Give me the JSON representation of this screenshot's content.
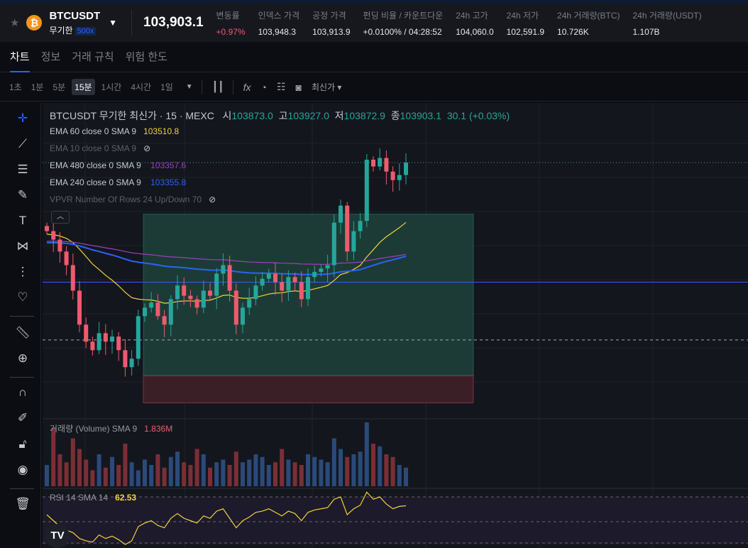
{
  "header": {
    "symbol": "BTCUSDT",
    "type": "무기한",
    "leverage": "500x",
    "last_price": "103,903.1",
    "stats": [
      {
        "label": "변동률",
        "value": "+0.97%",
        "color": "#f05a6e"
      },
      {
        "label": "인덱스 가격",
        "value": "103,948.3"
      },
      {
        "label": "공정 가격",
        "value": "103,913.9"
      },
      {
        "label": "펀딩 비율 / 카운트다운",
        "value": "+0.0100% / 04:28:52"
      },
      {
        "label": "24h 고가",
        "value": "104,060.0"
      },
      {
        "label": "24h 저가",
        "value": "102,591.9"
      },
      {
        "label": "24h 거래량(BTC)",
        "value": "10.726K"
      },
      {
        "label": "24h 거래량(USDT)",
        "value": "1.107B"
      }
    ]
  },
  "tabs": [
    "차트",
    "정보",
    "거래 규칙",
    "위험 한도"
  ],
  "toolbar": {
    "intervals": [
      "1초",
      "1분",
      "5분",
      "15분",
      "1시간",
      "4시간",
      "1일"
    ],
    "active_interval": "15분",
    "price_type": "최신가"
  },
  "legend": {
    "title": "BTCUSDT 무기한 최신가 · 15 · MEXC",
    "o_label": "시",
    "o": "103873.0",
    "h_label": "고",
    "h": "103927.0",
    "l_label": "저",
    "l": "103872.9",
    "c_label": "종",
    "c": "103903.1",
    "change": "30.1 (+0.03%)",
    "ema60": {
      "label": "EMA 60 close 0 SMA 9",
      "value": "103510.8"
    },
    "ema10": {
      "label": "EMA 10 close 0 SMA 9"
    },
    "ema480": {
      "label": "EMA 480 close 0 SMA 9",
      "value": "103357.6"
    },
    "ema240": {
      "label": "EMA 240 close 0 SMA 9",
      "value": "103355.8"
    },
    "vpvr": {
      "label": "VPVR Number Of Rows 24 Up/Down 70"
    },
    "volume": {
      "label": "거래량 (Volume) SMA 9",
      "value": "1.836M"
    },
    "rsi": {
      "label": "RSI 14 SMA 14",
      "value": "62.53"
    }
  },
  "colors": {
    "up": "#26a69a",
    "down": "#f05a6e",
    "ema60": "#f0d43a",
    "ema480": "#9c3fc4",
    "ema240": "#2962ff",
    "accent": "#2962ff"
  },
  "chart_data": {
    "type": "candlestick",
    "closes": [
      103500,
      103450,
      103380,
      103300,
      103150,
      102950,
      102850,
      102800,
      102900,
      102850,
      102880,
      102800,
      102700,
      102750,
      103000,
      103050,
      103080,
      103000,
      102950,
      103100,
      103180,
      103120,
      103100,
      103050,
      103150,
      103120,
      103250,
      103300,
      103150,
      102950,
      103050,
      103100,
      103180,
      103220,
      103250,
      103200,
      103150,
      103230,
      103200,
      103100,
      103230,
      103260,
      103280,
      103300,
      103550,
      103650,
      103380,
      103500,
      103560,
      103920,
      103880,
      103930,
      103850,
      103800,
      103830,
      103903
    ],
    "volume": [
      40,
      110,
      60,
      45,
      90,
      70,
      50,
      30,
      60,
      35,
      55,
      40,
      80,
      45,
      30,
      50,
      40,
      60,
      35,
      55,
      65,
      45,
      40,
      70,
      60,
      35,
      45,
      50,
      40,
      65,
      45,
      50,
      60,
      55,
      40,
      45,
      70,
      50,
      45,
      40,
      60,
      55,
      50,
      45,
      90,
      70,
      55,
      60,
      65,
      120,
      80,
      75,
      60,
      55,
      40,
      35
    ],
    "rsi": [
      55,
      50,
      45,
      42,
      40,
      35,
      33,
      32,
      38,
      35,
      37,
      34,
      30,
      33,
      45,
      48,
      50,
      46,
      44,
      52,
      56,
      52,
      50,
      48,
      54,
      52,
      58,
      60,
      52,
      44,
      50,
      53,
      57,
      58,
      60,
      57,
      54,
      58,
      56,
      50,
      57,
      59,
      60,
      61,
      68,
      70,
      55,
      60,
      63,
      74,
      68,
      70,
      64,
      60,
      62,
      62.53
    ],
    "vpvr_box": {
      "top_price": 103600,
      "mid_price": 102650,
      "bottom_price": 102490
    },
    "price_lines": {
      "current": 103903.1,
      "blue": 103200,
      "dashed": 102860
    }
  }
}
